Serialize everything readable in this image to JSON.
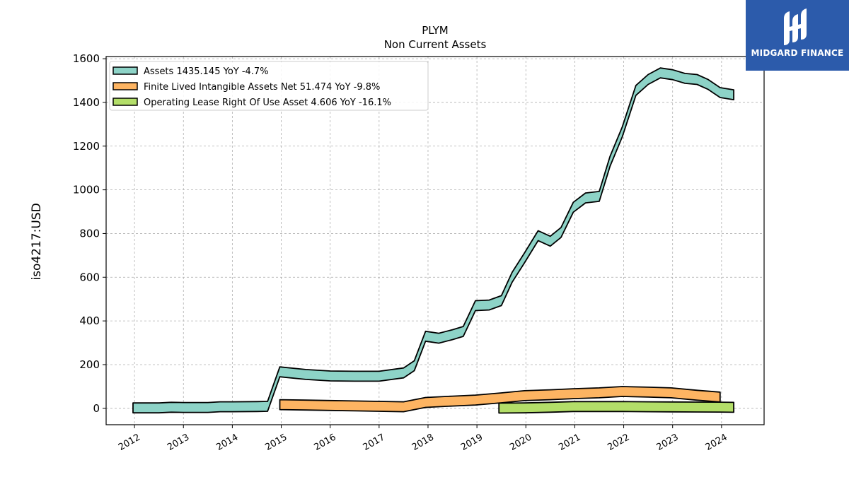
{
  "chart_data": {
    "type": "area",
    "title": "PLYM",
    "subtitle": "Non Current  Assets",
    "xlabel": "",
    "ylabel": "iso4217:USD",
    "ylim": [
      -75,
      1610
    ],
    "xlim": [
      2011.42,
      2024.87
    ],
    "yticks": [
      0,
      200,
      400,
      600,
      800,
      1000,
      1200,
      1400,
      1600
    ],
    "xticks": [
      2012,
      2013,
      2014,
      2015,
      2016,
      2017,
      2018,
      2019,
      2020,
      2021,
      2022,
      2023,
      2024
    ],
    "grid": true,
    "legend_position": "top-left",
    "series": [
      {
        "name": "Assets  1435.145 YoY -4.7%",
        "color": "#8dd3c7",
        "x": [
          2011.97,
          2012.5,
          2012.75,
          2013.0,
          2013.5,
          2013.75,
          2014.0,
          2014.5,
          2014.72,
          2014.97,
          2015.5,
          2016.0,
          2016.5,
          2017.0,
          2017.5,
          2017.72,
          2017.95,
          2018.22,
          2018.5,
          2018.72,
          2018.97,
          2019.25,
          2019.5,
          2019.72,
          2019.97,
          2020.25,
          2020.5,
          2020.72,
          2020.97,
          2021.22,
          2021.5,
          2021.72,
          2021.97,
          2022.25,
          2022.5,
          2022.75,
          2023.0,
          2023.25,
          2023.5,
          2023.72,
          2023.97,
          2024.25
        ],
        "values": [
          2,
          2,
          5,
          4,
          4,
          7,
          7,
          8,
          9,
          167,
          155,
          148,
          147,
          147,
          162,
          195,
          330,
          321,
          337,
          352,
          470,
          473,
          493,
          600,
          688,
          790,
          765,
          805,
          920,
          963,
          970,
          1130,
          1265,
          1455,
          1505,
          1535,
          1527,
          1510,
          1505,
          1483,
          1445,
          1435
        ]
      },
      {
        "name": "Finite Lived Intangible Assets Net  51.474 YoY -9.8%",
        "color": "#fdb462",
        "x": [
          2014.97,
          2015.5,
          2016.0,
          2016.5,
          2017.0,
          2017.5,
          2017.95,
          2018.5,
          2018.97,
          2019.5,
          2019.97,
          2020.5,
          2020.97,
          2021.5,
          2021.97,
          2022.5,
          2022.97,
          2023.5,
          2023.97
        ],
        "values": [
          17,
          15,
          13,
          11,
          9,
          7,
          27,
          33,
          38,
          48,
          58,
          62,
          67,
          71,
          77,
          74,
          71,
          60,
          51.474
        ]
      },
      {
        "name": "Operating Lease Right Of Use Asset  4.606 YoY -16.1%",
        "color": "#b3de69",
        "x": [
          2019.45,
          2019.97,
          2020.5,
          2020.97,
          2021.5,
          2021.97,
          2022.5,
          2022.97,
          2023.5,
          2023.97,
          2024.25
        ],
        "values": [
          1,
          2,
          5,
          8,
          8,
          8,
          7,
          6.5,
          6,
          5.5,
          4.606
        ]
      }
    ]
  },
  "logo": {
    "text": "MIDGARD FINANCE",
    "background": "#2c5bab"
  }
}
